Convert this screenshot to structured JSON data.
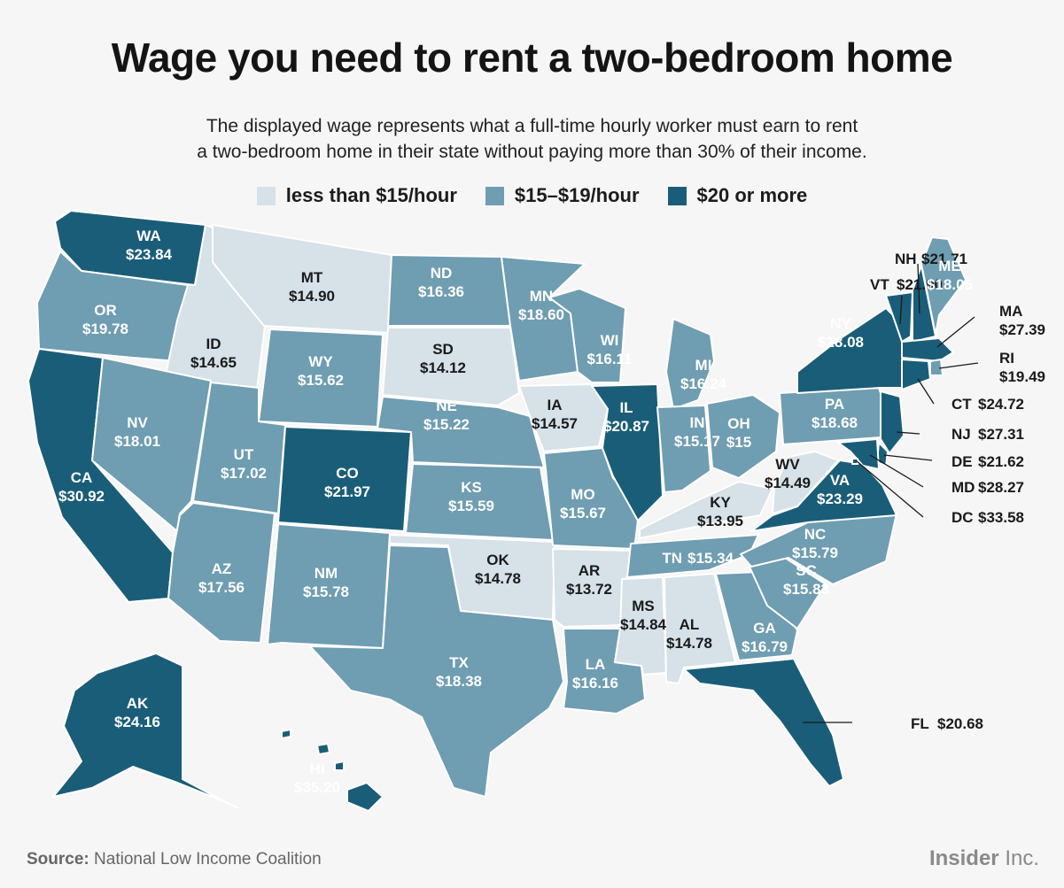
{
  "title": "Wage you need to rent a two-bedroom home",
  "subtitle_line1": "The displayed wage represents what a full-time hourly worker must earn to rent",
  "subtitle_line2": "a two-bedroom home in their state without paying more than 30% of their income.",
  "legend": [
    {
      "label": "less than $15/hour",
      "color": "#d6e1e8"
    },
    {
      "label": "$15–$19/hour",
      "color": "#6f9db1"
    },
    {
      "label": "$20 or more",
      "color": "#1a5d78"
    }
  ],
  "colors": {
    "low": "#d6e1e8",
    "mid": "#6f9db1",
    "high": "#1a5d78",
    "background": "#f6f6f6"
  },
  "states": [
    {
      "abbr": "WA",
      "wage": "$23.84",
      "tier": "high"
    },
    {
      "abbr": "OR",
      "wage": "$19.78",
      "tier": "mid"
    },
    {
      "abbr": "CA",
      "wage": "$30.92",
      "tier": "high"
    },
    {
      "abbr": "ID",
      "wage": "$14.65",
      "tier": "low"
    },
    {
      "abbr": "NV",
      "wage": "$18.01",
      "tier": "mid"
    },
    {
      "abbr": "MT",
      "wage": "$14.90",
      "tier": "low"
    },
    {
      "abbr": "WY",
      "wage": "$15.62",
      "tier": "mid"
    },
    {
      "abbr": "UT",
      "wage": "$17.02",
      "tier": "mid"
    },
    {
      "abbr": "AZ",
      "wage": "$17.56",
      "tier": "mid"
    },
    {
      "abbr": "CO",
      "wage": "$21.97",
      "tier": "high"
    },
    {
      "abbr": "NM",
      "wage": "$15.78",
      "tier": "mid"
    },
    {
      "abbr": "ND",
      "wage": "$16.36",
      "tier": "mid"
    },
    {
      "abbr": "SD",
      "wage": "$14.12",
      "tier": "low"
    },
    {
      "abbr": "NE",
      "wage": "$15.22",
      "tier": "mid"
    },
    {
      "abbr": "KS",
      "wage": "$15.59",
      "tier": "mid"
    },
    {
      "abbr": "OK",
      "wage": "$14.78",
      "tier": "low"
    },
    {
      "abbr": "TX",
      "wage": "$18.38",
      "tier": "mid"
    },
    {
      "abbr": "MN",
      "wage": "$18.60",
      "tier": "mid"
    },
    {
      "abbr": "IA",
      "wage": "$14.57",
      "tier": "low"
    },
    {
      "abbr": "MO",
      "wage": "$15.67",
      "tier": "mid"
    },
    {
      "abbr": "AR",
      "wage": "$13.72",
      "tier": "low"
    },
    {
      "abbr": "LA",
      "wage": "$16.16",
      "tier": "mid"
    },
    {
      "abbr": "WI",
      "wage": "$16.11",
      "tier": "mid"
    },
    {
      "abbr": "IL",
      "wage": "$20.87",
      "tier": "high"
    },
    {
      "abbr": "MI",
      "wage": "$16.24",
      "tier": "mid"
    },
    {
      "abbr": "IN",
      "wage": "$15.17",
      "tier": "mid"
    },
    {
      "abbr": "OH",
      "wage": "$15",
      "tier": "mid"
    },
    {
      "abbr": "KY",
      "wage": "$13.95",
      "tier": "low"
    },
    {
      "abbr": "TN",
      "wage": "$15.34",
      "tier": "mid"
    },
    {
      "abbr": "MS",
      "wage": "$14.84",
      "tier": "low"
    },
    {
      "abbr": "AL",
      "wage": "$14.78",
      "tier": "low"
    },
    {
      "abbr": "GA",
      "wage": "$16.79",
      "tier": "mid"
    },
    {
      "abbr": "FL",
      "wage": "$20.68",
      "tier": "high"
    },
    {
      "abbr": "SC",
      "wage": "$15.83",
      "tier": "mid"
    },
    {
      "abbr": "NC",
      "wage": "$15.79",
      "tier": "mid"
    },
    {
      "abbr": "VA",
      "wage": "$23.29",
      "tier": "high"
    },
    {
      "abbr": "WV",
      "wage": "$14.49",
      "tier": "low"
    },
    {
      "abbr": "PA",
      "wage": "$18.68",
      "tier": "mid"
    },
    {
      "abbr": "NY",
      "wage": "$28.08",
      "tier": "high"
    },
    {
      "abbr": "VT",
      "wage": "$21.90",
      "tier": "high"
    },
    {
      "abbr": "NH",
      "wage": "$21.71",
      "tier": "high"
    },
    {
      "abbr": "ME",
      "wage": "$18.05",
      "tier": "mid"
    },
    {
      "abbr": "MA",
      "wage": "$27.39",
      "tier": "high"
    },
    {
      "abbr": "RI",
      "wage": "$19.49",
      "tier": "mid"
    },
    {
      "abbr": "CT",
      "wage": "$24.72",
      "tier": "high"
    },
    {
      "abbr": "NJ",
      "wage": "$27.31",
      "tier": "high"
    },
    {
      "abbr": "DE",
      "wage": "$21.62",
      "tier": "high"
    },
    {
      "abbr": "MD",
      "wage": "$28.27",
      "tier": "high"
    },
    {
      "abbr": "DC",
      "wage": "$33.58",
      "tier": "high"
    },
    {
      "abbr": "AK",
      "wage": "$24.16",
      "tier": "high"
    },
    {
      "abbr": "HI",
      "wage": "$35.20",
      "tier": "high"
    }
  ],
  "source_label": "Source:",
  "source_text": "National Low Income Coalition",
  "brand_name": "Insider",
  "brand_suffix": "Inc."
}
